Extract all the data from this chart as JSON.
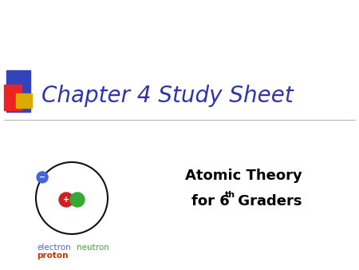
{
  "title": "Chapter 4 Study Sheet",
  "subtitle_line1": "Atomic Theory",
  "subtitle_line2_pre": "for 6",
  "subtitle_line2_sup": "th",
  "subtitle_line2_post": " Graders",
  "title_color": "#3333aa",
  "subtitle_color": "#000000",
  "bg_color": "#ffffff",
  "electron_label": "electron",
  "neutron_label": "neutron",
  "proton_label": "proton",
  "electron_color": "#4466dd",
  "neutron_color": "#33aa33",
  "proton_color": "#cc2222",
  "atom_ring_color": "#111111",
  "label_electron_color": "#4466dd",
  "label_proton_color": "#cc3300",
  "label_neutron_color": "#22bb22",
  "deco_blue": "#3344bb",
  "deco_red": "#ee2222",
  "deco_yellow": "#ddaa00",
  "line_color": "#bbbbbb",
  "fig_width": 4.5,
  "fig_height": 3.38,
  "dpi": 100
}
